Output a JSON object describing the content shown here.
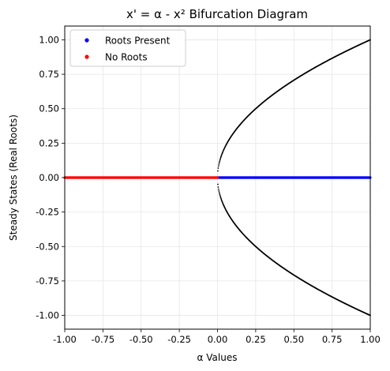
{
  "chart_data": {
    "type": "scatter",
    "title": "x' = α - x² Bifurcation Diagram",
    "xlabel": "α Values",
    "ylabel": "Steady States (Real Roots)",
    "xlim": [
      -1.0,
      1.0
    ],
    "ylim": [
      -1.1,
      1.1
    ],
    "x_ticks": [
      "-1.00",
      "-0.75",
      "-0.50",
      "-0.25",
      "0.00",
      "0.25",
      "0.50",
      "0.75",
      "1.00"
    ],
    "y_ticks": [
      "1.00",
      "0.75",
      "0.50",
      "0.25",
      "0.00",
      "-0.25",
      "-0.50",
      "-0.75",
      "-1.00"
    ],
    "grid": true,
    "legend_position": "top-left",
    "series": [
      {
        "name": "Roots Present",
        "color": "#0000ff",
        "marker": "dot",
        "x_range": [
          0.0,
          1.0
        ],
        "y": 0
      },
      {
        "name": "No Roots",
        "color": "#ff0000",
        "marker": "dot",
        "x_range": [
          -1.0,
          0.0
        ],
        "y": 0
      }
    ],
    "curve": {
      "color": "#000000",
      "equation": "x = ±sqrt(α)",
      "branches": [
        {
          "x": [
            0.0,
            0.01,
            0.04,
            0.09,
            0.16,
            0.25,
            0.36,
            0.49,
            0.64,
            0.81,
            1.0
          ],
          "y": [
            0.0,
            0.1,
            0.2,
            0.3,
            0.4,
            0.5,
            0.6,
            0.7,
            0.8,
            0.9,
            1.0
          ]
        },
        {
          "x": [
            0.0,
            0.01,
            0.04,
            0.09,
            0.16,
            0.25,
            0.36,
            0.49,
            0.64,
            0.81,
            1.0
          ],
          "y": [
            0.0,
            -0.1,
            -0.2,
            -0.3,
            -0.4,
            -0.5,
            -0.6,
            -0.7,
            -0.8,
            -0.9,
            -1.0
          ]
        }
      ]
    }
  }
}
